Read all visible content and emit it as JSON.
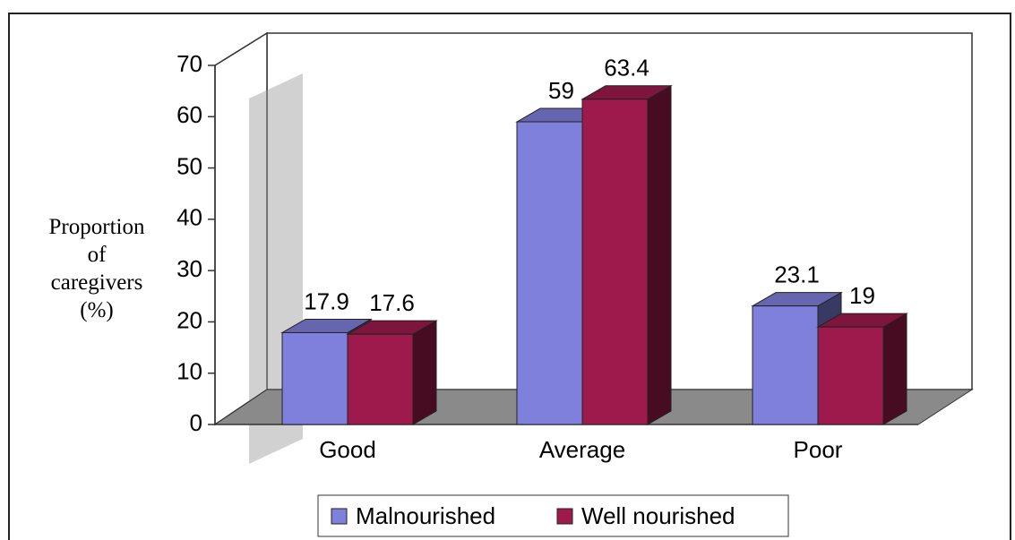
{
  "chart_data": {
    "type": "bar3d",
    "ylabel": "Proportion of caregivers (%)",
    "categories": [
      "Good",
      "Average",
      "Poor"
    ],
    "series": [
      {
        "name": "Malnourished",
        "color": "#7f80dc",
        "values": [
          17.9,
          59,
          23.1
        ]
      },
      {
        "name": "Well nourished",
        "color": "#9e1a4c",
        "values": [
          17.6,
          63.4,
          19
        ]
      }
    ],
    "ylim": [
      0,
      70
    ],
    "yticks": [
      0,
      10,
      20,
      30,
      40,
      50,
      60,
      70
    ],
    "legend": "bottom"
  }
}
